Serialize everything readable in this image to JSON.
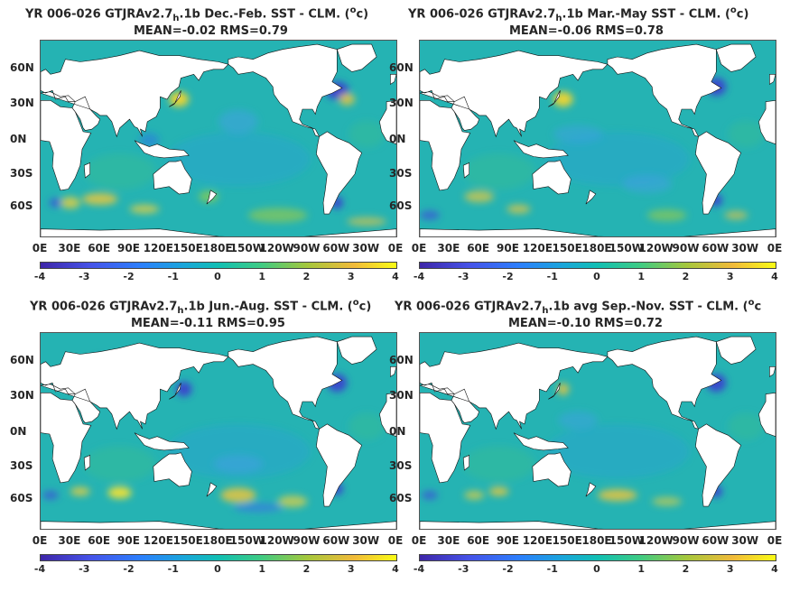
{
  "panels": [
    {
      "title_a": "YR 006-026 GTJRAv2.7",
      "title_sub": "h",
      "title_b": ".1b  Dec.-Feb. SST - CLM. (",
      "title_sup": "o",
      "title_c": "c)",
      "stats": "MEAN=-0.02   RMS=0.79"
    },
    {
      "title_a": "YR 006-026 GTJRAv2.7",
      "title_sub": "h",
      "title_b": ".1b Mar.-May SST - CLM. (",
      "title_sup": "o",
      "title_c": "c)",
      "stats": "MEAN=-0.06   RMS=0.78"
    },
    {
      "title_a": "YR 006-026 GTJRAv2.7",
      "title_sub": "h",
      "title_b": ".1b Jun.-Aug. SST - CLM. (",
      "title_sup": "o",
      "title_c": "c)",
      "stats": "MEAN=-0.11   RMS=0.95"
    },
    {
      "title_a": "YR 006-026 GTJRAv2.7",
      "title_sub": "h",
      "title_b": ".1b avg Sep.-Nov. SST - CLM. (",
      "title_sup": "o",
      "title_c": "c",
      "stats": "MEAN=-0.10   RMS=0.72"
    }
  ],
  "lat_labels": [
    "60N",
    "30N",
    "0N",
    "30S",
    "60S"
  ],
  "lon_labels": [
    "0E",
    "30E",
    "60E",
    "90E",
    "120E",
    "150E",
    "180E",
    "150W",
    "120W",
    "90W",
    "60W",
    "30W",
    "0E"
  ],
  "colorbar": {
    "ticks": [
      "-4",
      "-3",
      "-2",
      "-1",
      "0",
      "1",
      "2",
      "3",
      "4"
    ],
    "colors": {
      "ocean_base": "#25b3b3",
      "land": "#ffffff",
      "cold": "#3e4fd8",
      "warm": "#f4d33a"
    }
  }
}
